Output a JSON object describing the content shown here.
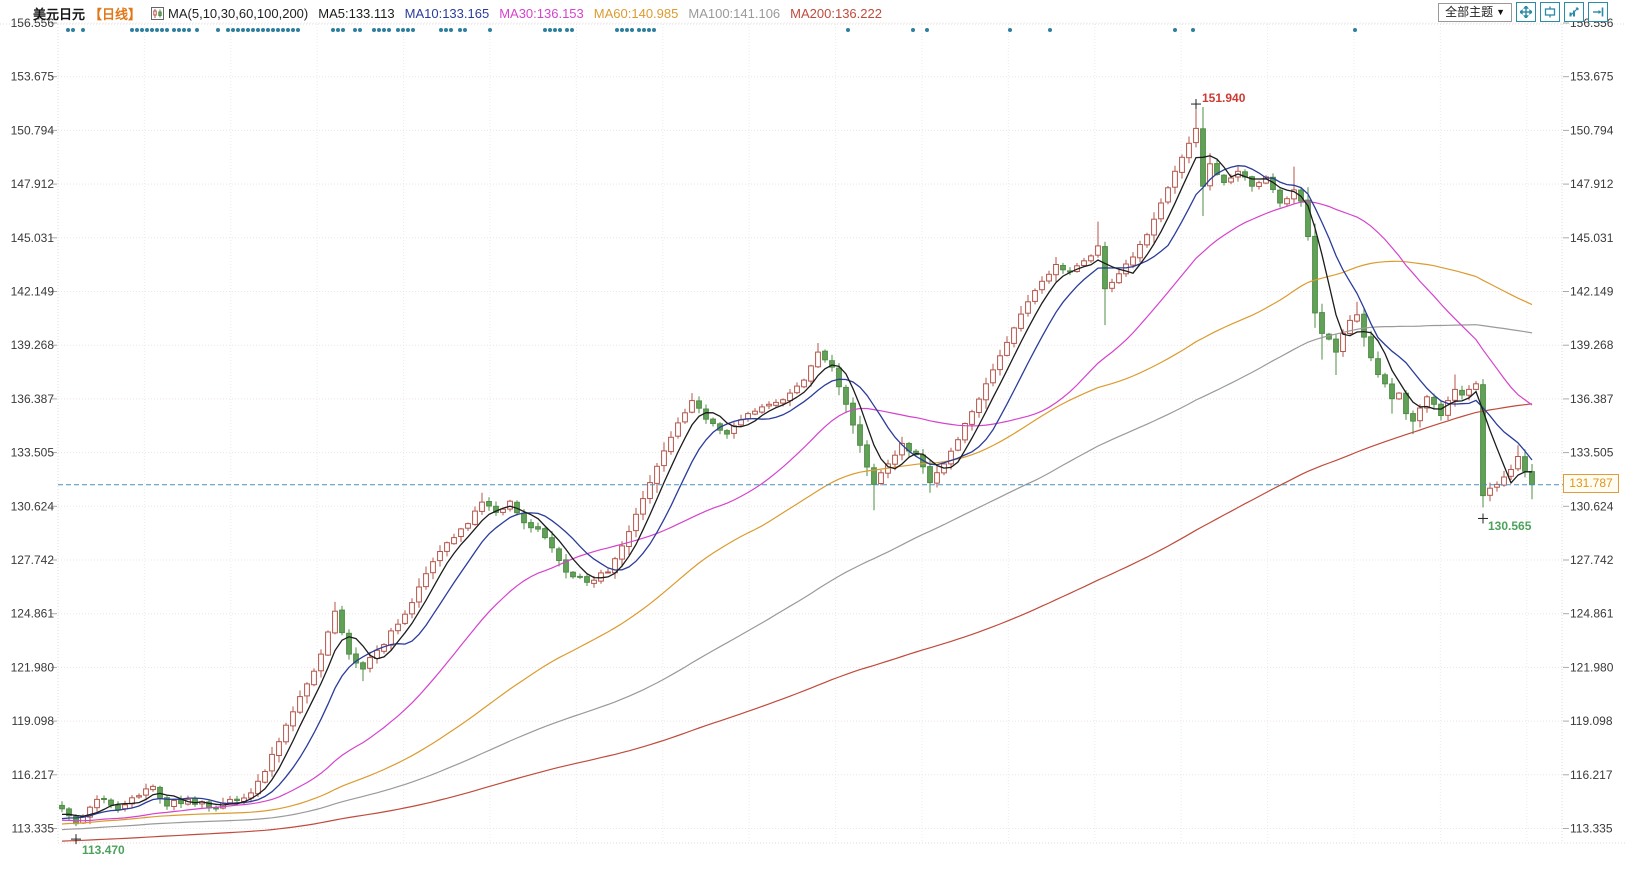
{
  "header": {
    "symbol": "美元日元",
    "period": "【日线】",
    "indicator_label": "MA(5,10,30,60,100,200)",
    "ma_items": [
      {
        "name": "MA5",
        "text": "MA5:133.113",
        "color": "#1c1c1c"
      },
      {
        "name": "MA10",
        "text": "MA10:133.165",
        "color": "#2b3c9b"
      },
      {
        "name": "MA30",
        "text": "MA30:136.153",
        "color": "#d543cd"
      },
      {
        "name": "MA60",
        "text": "MA60:140.985",
        "color": "#dc9b2f"
      },
      {
        "name": "MA100",
        "text": "MA100:141.106",
        "color": "#9a9a9a"
      },
      {
        "name": "MA200",
        "text": "MA200:136.222",
        "color": "#bf4b3c"
      }
    ]
  },
  "toolbar": {
    "theme_selector": "全部主题",
    "dropdown_arrow": "▼"
  },
  "chart_data": {
    "type": "candlestick",
    "title": "美元日元 日线 (USD/JPY daily with MA 5/10/30/60/100/200)",
    "y_ticks": [
      "156.556",
      "153.675",
      "150.794",
      "147.912",
      "145.031",
      "142.149",
      "139.268",
      "136.387",
      "133.505",
      "130.624",
      "127.742",
      "124.861",
      "121.980",
      "119.098",
      "116.217",
      "113.335"
    ],
    "last_price": "131.787",
    "last_price_value": 131.787,
    "up_color": "#b4554a",
    "down_color": "#62a258",
    "down_stroke": "#4f8c46",
    "dashed_line_color": "#4a90b8",
    "dot_color": "#2e7f9e",
    "ma_periods": [
      200,
      100,
      60,
      30,
      10,
      5
    ],
    "ma_colors": {
      "5": "#1c1c1c",
      "10": "#2b3c9b",
      "30": "#d543cd",
      "60": "#dc9b2f",
      "100": "#9a9a9a",
      "200": "#bf4b3c"
    },
    "candle_count": 211,
    "seed": 7,
    "prehistory": {
      "count": 220,
      "start": 110.2,
      "end": 114.2
    },
    "markers": {
      "high": {
        "index": 162,
        "value": "151.940",
        "price": 151.94,
        "color": "#cc3b33"
      },
      "low_start": {
        "index": 2,
        "value": "113.470",
        "price": 113.47,
        "color": "#4ca25c"
      },
      "low_recent": {
        "index": 203,
        "value": "130.565",
        "price": 130.565,
        "color": "#4ca25c"
      }
    },
    "event_dots_x": [
      68,
      73,
      83,
      132,
      137,
      142,
      147,
      152,
      157,
      162,
      167,
      174,
      179,
      184,
      189,
      197,
      218,
      228,
      233,
      238,
      243,
      248,
      253,
      258,
      263,
      268,
      273,
      278,
      283,
      288,
      293,
      298,
      333,
      338,
      343,
      355,
      360,
      374,
      379,
      384,
      389,
      398,
      403,
      408,
      413,
      441,
      446,
      451,
      460,
      465,
      490,
      545,
      550,
      555,
      560,
      567,
      572,
      617,
      622,
      627,
      632,
      639,
      644,
      649,
      654,
      848,
      913,
      927,
      1010,
      1050,
      1175,
      1193,
      1355
    ],
    "close_anchors": [
      [
        0,
        114.4,
        null,
        null
      ],
      [
        2,
        113.6,
        null,
        113.47
      ],
      [
        5,
        114.9,
        null,
        null
      ],
      [
        8,
        114.35,
        null,
        null
      ],
      [
        11,
        115.1,
        null,
        null
      ],
      [
        13,
        115.6,
        null,
        null
      ],
      [
        15,
        114.55,
        null,
        null
      ],
      [
        18,
        114.9,
        null,
        null
      ],
      [
        21,
        114.45,
        null,
        null
      ],
      [
        24,
        114.9,
        null,
        null
      ],
      [
        27,
        115.25,
        null,
        null
      ],
      [
        29,
        116.4,
        null,
        null
      ],
      [
        31,
        118.0,
        null,
        null
      ],
      [
        33,
        119.6,
        null,
        null
      ],
      [
        35,
        121.1,
        null,
        null
      ],
      [
        37,
        122.7,
        null,
        null
      ],
      [
        39,
        125.0,
        125.5,
        null
      ],
      [
        41,
        122.7,
        null,
        null
      ],
      [
        43,
        121.9,
        null,
        121.25
      ],
      [
        45,
        122.9,
        null,
        null
      ],
      [
        48,
        124.3,
        null,
        null
      ],
      [
        51,
        126.3,
        null,
        null
      ],
      [
        54,
        128.2,
        null,
        null
      ],
      [
        56,
        128.95,
        null,
        null
      ],
      [
        58,
        129.7,
        null,
        null
      ],
      [
        60,
        130.85,
        131.35,
        null
      ],
      [
        62,
        130.3,
        null,
        null
      ],
      [
        64,
        130.9,
        null,
        null
      ],
      [
        66,
        129.75,
        null,
        null
      ],
      [
        68,
        129.4,
        null,
        null
      ],
      [
        70,
        128.4,
        null,
        null
      ],
      [
        72,
        127.1,
        null,
        null
      ],
      [
        75,
        126.55,
        null,
        126.35
      ],
      [
        78,
        127.1,
        null,
        null
      ],
      [
        80,
        128.5,
        null,
        null
      ],
      [
        82,
        130.2,
        null,
        null
      ],
      [
        84,
        131.9,
        null,
        null
      ],
      [
        86,
        133.6,
        null,
        null
      ],
      [
        88,
        135.1,
        null,
        null
      ],
      [
        90,
        136.3,
        136.7,
        null
      ],
      [
        92,
        135.3,
        null,
        null
      ],
      [
        95,
        134.5,
        null,
        134.25
      ],
      [
        98,
        135.6,
        null,
        null
      ],
      [
        101,
        136.1,
        null,
        null
      ],
      [
        104,
        136.7,
        null,
        null
      ],
      [
        106,
        137.4,
        null,
        null
      ],
      [
        108,
        138.9,
        139.39,
        null
      ],
      [
        110,
        138.1,
        null,
        null
      ],
      [
        112,
        136.1,
        null,
        null
      ],
      [
        114,
        133.9,
        null,
        null
      ],
      [
        116,
        131.8,
        null,
        130.41
      ],
      [
        118,
        132.9,
        null,
        null
      ],
      [
        120,
        134.0,
        null,
        null
      ],
      [
        122,
        133.4,
        null,
        null
      ],
      [
        124,
        131.9,
        null,
        131.35
      ],
      [
        126,
        132.9,
        null,
        null
      ],
      [
        128,
        134.2,
        null,
        null
      ],
      [
        130,
        135.7,
        null,
        null
      ],
      [
        132,
        137.2,
        null,
        null
      ],
      [
        134,
        138.7,
        null,
        null
      ],
      [
        136,
        140.2,
        null,
        null
      ],
      [
        138,
        141.6,
        null,
        null
      ],
      [
        140,
        142.7,
        null,
        null
      ],
      [
        142,
        143.6,
        144.0,
        null
      ],
      [
        144,
        143.2,
        null,
        null
      ],
      [
        146,
        143.8,
        null,
        null
      ],
      [
        148,
        144.6,
        145.9,
        null
      ],
      [
        149,
        142.3,
        null,
        140.35
      ],
      [
        151,
        143.1,
        null,
        null
      ],
      [
        153,
        144.0,
        null,
        null
      ],
      [
        155,
        145.2,
        null,
        null
      ],
      [
        157,
        146.9,
        null,
        null
      ],
      [
        159,
        148.6,
        null,
        null
      ],
      [
        161,
        150.1,
        null,
        null
      ],
      [
        162,
        150.9,
        151.94,
        null
      ],
      [
        163,
        147.8,
        null,
        146.2
      ],
      [
        164,
        149.0,
        null,
        null
      ],
      [
        166,
        148.0,
        null,
        null
      ],
      [
        168,
        148.6,
        null,
        null
      ],
      [
        170,
        147.8,
        null,
        null
      ],
      [
        172,
        148.3,
        null,
        null
      ],
      [
        174,
        146.9,
        null,
        null
      ],
      [
        176,
        147.6,
        148.85,
        null
      ],
      [
        177,
        147.0,
        null,
        null
      ],
      [
        178,
        145.1,
        null,
        null
      ],
      [
        179,
        141.0,
        null,
        140.2
      ],
      [
        180,
        139.9,
        null,
        138.5
      ],
      [
        181,
        139.6,
        null,
        null
      ],
      [
        182,
        138.9,
        null,
        137.67
      ],
      [
        183,
        139.9,
        null,
        null
      ],
      [
        184,
        140.6,
        null,
        null
      ],
      [
        185,
        140.9,
        141.6,
        null
      ],
      [
        186,
        139.7,
        null,
        null
      ],
      [
        187,
        138.6,
        null,
        null
      ],
      [
        188,
        137.7,
        null,
        null
      ],
      [
        189,
        137.2,
        null,
        null
      ],
      [
        190,
        136.4,
        null,
        135.6
      ],
      [
        191,
        136.7,
        null,
        null
      ],
      [
        192,
        135.6,
        null,
        null
      ],
      [
        193,
        135.2,
        null,
        134.5
      ],
      [
        194,
        135.9,
        null,
        null
      ],
      [
        195,
        136.5,
        null,
        null
      ],
      [
        196,
        136.1,
        null,
        null
      ],
      [
        197,
        135.5,
        null,
        null
      ],
      [
        198,
        136.3,
        null,
        null
      ],
      [
        199,
        136.9,
        137.7,
        null
      ],
      [
        200,
        136.6,
        null,
        null
      ],
      [
        201,
        136.9,
        null,
        null
      ],
      [
        202,
        137.2,
        null,
        null
      ],
      [
        203,
        131.2,
        137.45,
        130.565
      ],
      [
        204,
        131.6,
        null,
        130.9
      ],
      [
        205,
        131.8,
        null,
        null
      ],
      [
        206,
        132.2,
        null,
        null
      ],
      [
        207,
        132.6,
        null,
        null
      ],
      [
        208,
        133.3,
        133.9,
        null
      ],
      [
        209,
        132.5,
        null,
        null
      ],
      [
        210,
        131.787,
        null,
        131.0
      ]
    ]
  }
}
